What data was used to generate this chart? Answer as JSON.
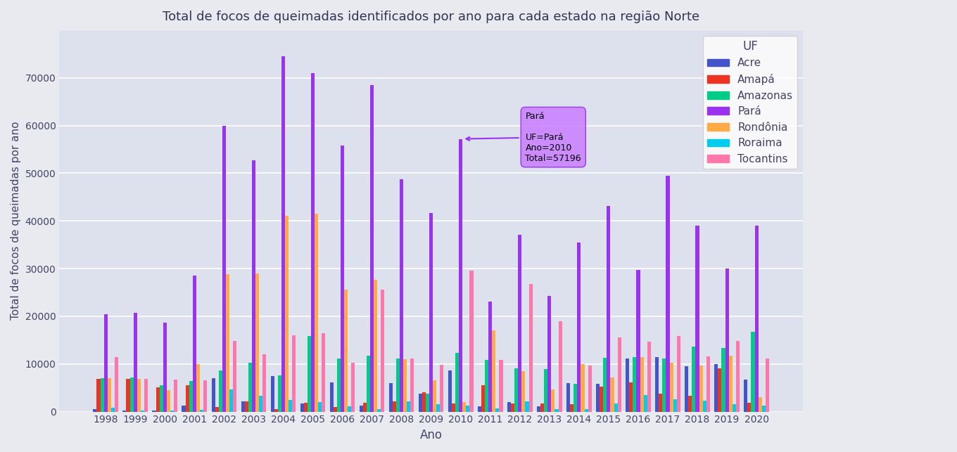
{
  "title": "Total de focos de queimadas identificados por ano para cada estado na região Norte",
  "xlabel": "Ano",
  "ylabel": "Total de focos de queimadas por ano",
  "legend_title": "UF",
  "states": [
    "Acre",
    "Amapá",
    "Amazonas",
    "Pará",
    "Rondônia",
    "Roraima",
    "Tocantins"
  ],
  "colors": [
    "#4455cc",
    "#ee3322",
    "#00cc88",
    "#9933ee",
    "#ffaa44",
    "#00ccee",
    "#ff77aa"
  ],
  "years": [
    1998,
    1999,
    2000,
    2001,
    2002,
    2003,
    2004,
    2005,
    2006,
    2007,
    2008,
    2009,
    2010,
    2011,
    2012,
    2013,
    2014,
    2015,
    2016,
    2017,
    2018,
    2019,
    2020
  ],
  "data": {
    "Acre": [
      500,
      200,
      200,
      1200,
      7000,
      2200,
      7500,
      1700,
      6200,
      1300,
      6000,
      3700,
      8600,
      1100,
      2000,
      1100,
      6000,
      5800,
      11200,
      11500,
      9500,
      10000,
      6700
    ],
    "Amapá": [
      6900,
      6900,
      5100,
      5600,
      1000,
      2100,
      500,
      1800,
      1000,
      1800,
      2200,
      4000,
      1700,
      5500,
      1700,
      1700,
      1600,
      5200,
      6200,
      3700,
      3400,
      9100,
      1900
    ],
    "Amazonas": [
      7000,
      7200,
      5500,
      6400,
      8700,
      10300,
      7600,
      15800,
      11200,
      11700,
      11200,
      3700,
      12300,
      10800,
      9100,
      8900,
      5900,
      11300,
      11400,
      11100,
      13600,
      13300,
      16700
    ],
    "Pará": [
      20500,
      20700,
      18600,
      28500,
      60000,
      52700,
      74500,
      71000,
      55800,
      68500,
      48700,
      41700,
      57196,
      23100,
      37100,
      24200,
      35500,
      43200,
      29700,
      49500,
      39000,
      30000,
      39000
    ],
    "Rondônia": [
      7000,
      6900,
      4500,
      9900,
      28800,
      29000,
      41000,
      41500,
      25600,
      27600,
      11000,
      6600,
      2000,
      17000,
      8500,
      4700,
      10000,
      7200,
      11500,
      10200,
      9700,
      11700,
      3100
    ],
    "Roraima": [
      800,
      200,
      200,
      400,
      4700,
      3400,
      2500,
      2000,
      1100,
      600,
      2200,
      1500,
      1300,
      700,
      2100,
      600,
      600,
      1700,
      3500,
      2600,
      2300,
      1500,
      1200
    ],
    "Tocantins": [
      11400,
      6800,
      6700,
      6600,
      14800,
      12000,
      16000,
      16400,
      10200,
      25600,
      11200,
      9800,
      29500,
      10800,
      26700,
      19000,
      9700,
      15600,
      14700,
      15800,
      11600,
      14900,
      11200
    ]
  },
  "background_color": "#e8eaf0",
  "plot_bg_color": "#dde0ed",
  "grid_color": "#ffffff",
  "title_color": "#333355",
  "axis_color": "#444466",
  "ylim": [
    0,
    80000
  ],
  "yticks": [
    0,
    10000,
    20000,
    30000,
    40000,
    50000,
    60000,
    70000
  ],
  "tooltip": {
    "label": "Pará",
    "text": "UF=Pará\nAno=2010\nTotal=57196",
    "x": 2010,
    "state": "Pará",
    "color": "#9933ee"
  }
}
